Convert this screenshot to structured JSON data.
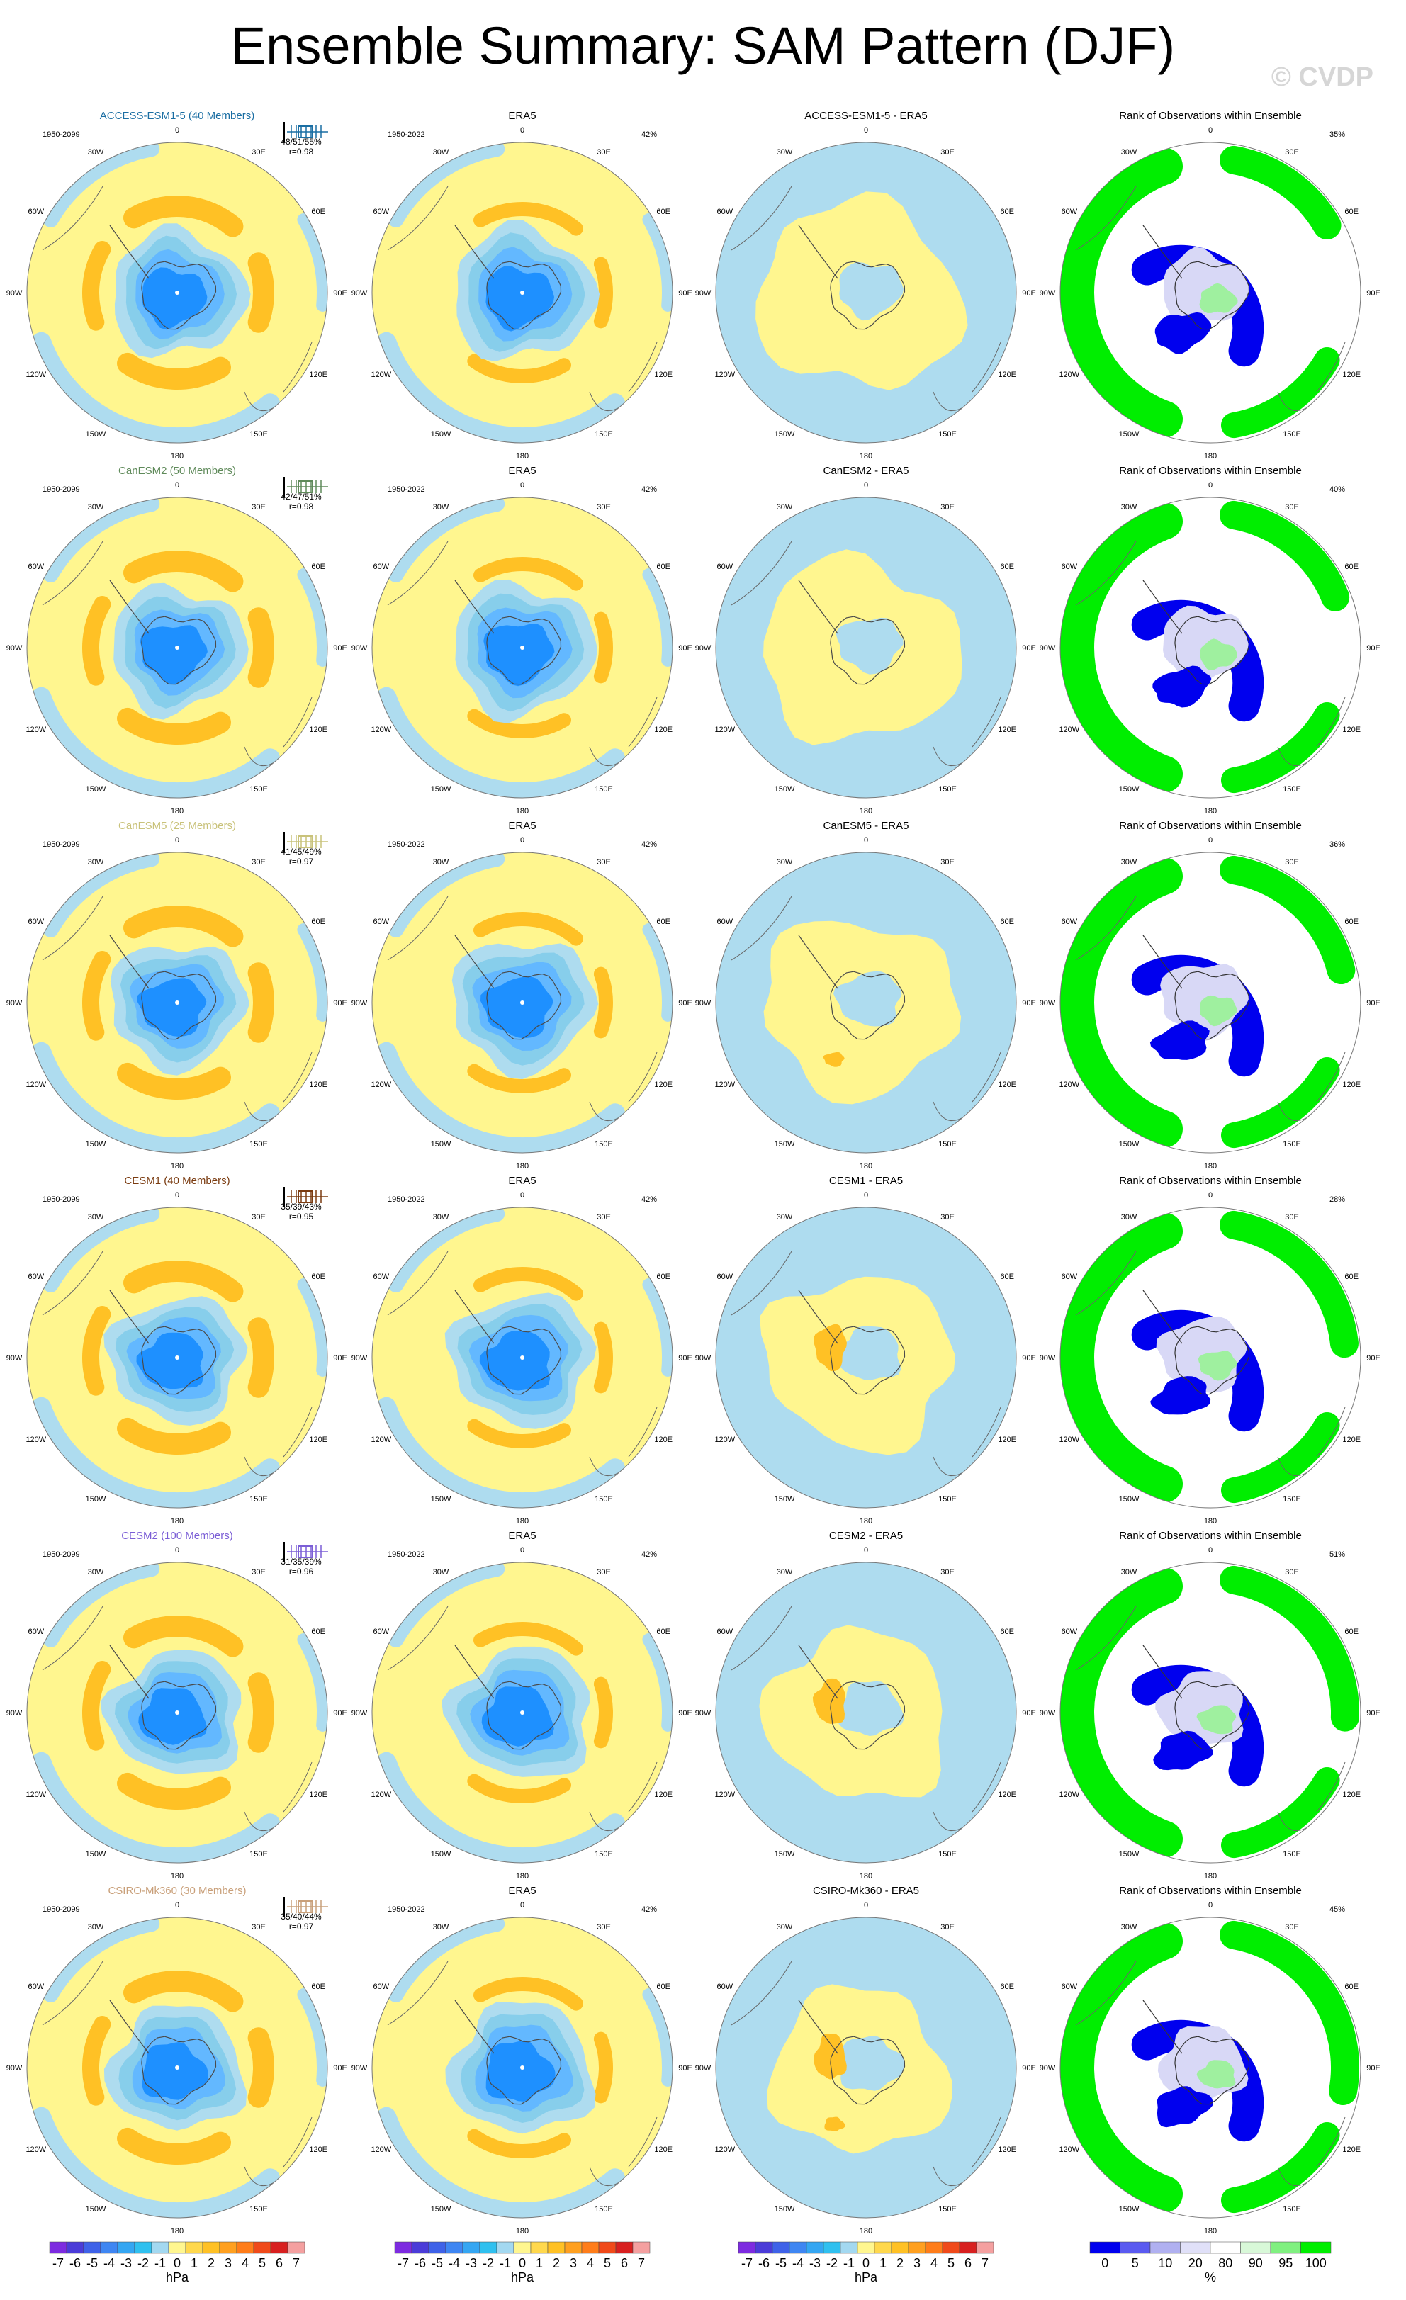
{
  "title": "Ensemble Summary: SAM Pattern (DJF)",
  "watermark": "© CVDP",
  "lon_labels": [
    "0",
    "30E",
    "60E",
    "90E",
    "120E",
    "150E",
    "180",
    "150W",
    "120W",
    "90W",
    "60W",
    "30W"
  ],
  "colors": {
    "yellow": "#fff68f",
    "light_blue": "#aedcef",
    "orange": "#ffc125",
    "dark_orange": "#f28c28",
    "blue_1": "#87ceeb",
    "blue_2": "#63b8ff",
    "blue_3": "#1e90ff",
    "rank_blue": "#0000ee",
    "rank_green": "#00ee00"
  },
  "rows": [
    {
      "model": "ACCESS-ESM1-5 (40 Members)",
      "model_color": "#1a6ea3",
      "period": "1950-2099",
      "stats": "48/51/55%",
      "r": "r=0.98",
      "diff_title": "ACCESS-ESM1-5 - ERA5",
      "rank_pct": "35%"
    },
    {
      "model": "CanESM2 (50 Members)",
      "model_color": "#5f8a5a",
      "period": "1950-2099",
      "stats": "42/47/51%",
      "r": "r=0.98",
      "diff_title": "CanESM2 - ERA5",
      "rank_pct": "40%"
    },
    {
      "model": "CanESM5 (25 Members)",
      "model_color": "#c9c27a",
      "period": "1950-2099",
      "stats": "41/45/49%",
      "r": "r=0.97",
      "diff_title": "CanESM5 - ERA5",
      "rank_pct": "36%"
    },
    {
      "model": "CESM1 (40 Members)",
      "model_color": "#7a3b10",
      "period": "1950-2099",
      "stats": "35/39/43%",
      "r": "r=0.95",
      "diff_title": "CESM1 - ERA5",
      "rank_pct": "28%"
    },
    {
      "model": "CESM2 (100 Members)",
      "model_color": "#7b5ed6",
      "period": "1950-2099",
      "stats": "31/35/39%",
      "r": "r=0.96",
      "diff_title": "CESM2 - ERA5",
      "rank_pct": "51%"
    },
    {
      "model": "CSIRO-Mk360 (30 Members)",
      "model_color": "#c9a07a",
      "period": "1950-2099",
      "stats": "35/40/44%",
      "r": "r=0.97",
      "diff_title": "CSIRO-Mk360 - ERA5",
      "rank_pct": "45%"
    }
  ],
  "obs": {
    "title": "ERA5",
    "period": "1950-2022",
    "pct": "42%"
  },
  "rank_title": "Rank of Observations within Ensemble",
  "chart_data": {
    "type": "heatmap",
    "title": "Ensemble Summary: SAM Pattern (DJF)",
    "panel_columns": [
      "model SAM pattern",
      "ERA5",
      "model - ERA5",
      "Rank of Observations within Ensemble"
    ],
    "colorbar_hpa": {
      "labels": [
        "-7",
        "-6",
        "-5",
        "-4",
        "-3",
        "-2",
        "-1",
        "0",
        "1",
        "2",
        "3",
        "4",
        "5",
        "6",
        "7"
      ],
      "units": "hPa",
      "colors": [
        "#7d2be0",
        "#4b3cd8",
        "#3f62e8",
        "#3f86f2",
        "#35a6f2",
        "#30c0ef",
        "#a3d8f0",
        "#fff68f",
        "#ffd84d",
        "#ffc125",
        "#ffa020",
        "#ff7d1a",
        "#f04a1a",
        "#d82020",
        "#f4a0a0"
      ]
    },
    "colorbar_rank": {
      "labels": [
        "0",
        "5",
        "10",
        "20",
        "80",
        "90",
        "95",
        "100"
      ],
      "units": "%",
      "colors": [
        "#0000ee",
        "#5a5af0",
        "#b0b0f0",
        "#e0e0f8",
        "#ffffff",
        "#d8f8d8",
        "#80f080",
        "#00ee00"
      ]
    }
  }
}
